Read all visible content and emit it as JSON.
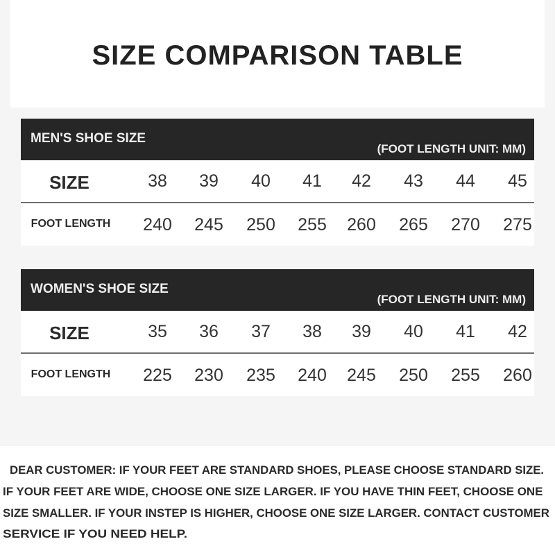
{
  "title": "SIZE COMPARISON TABLE",
  "tables": [
    {
      "heading": "MEN'S SHOE SIZE",
      "unit": "(FOOT LENGTH UNIT: MM)",
      "size_label": "SIZE",
      "length_label": "FOOT LENGTH",
      "sizes": [
        "38",
        "39",
        "40",
        "41",
        "42",
        "43",
        "44",
        "45"
      ],
      "lengths": [
        "240",
        "245",
        "250",
        "255",
        "260",
        "265",
        "270",
        "275"
      ]
    },
    {
      "heading": "WOMEN'S SHOE SIZE",
      "unit": "(FOOT LENGTH UNIT: MM)",
      "size_label": "SIZE",
      "length_label": "FOOT LENGTH",
      "sizes": [
        "35",
        "36",
        "37",
        "38",
        "39",
        "40",
        "41",
        "42"
      ],
      "lengths": [
        "225",
        "230",
        "235",
        "240",
        "245",
        "250",
        "255",
        "260"
      ]
    }
  ],
  "notice": {
    "lines": [
      "DEAR CUSTOMER: IF YOUR FEET ARE STANDARD SHOES, PLEASE CHOOSE STANDARD SIZE.",
      "IF YOUR FEET ARE WIDE, CHOOSE ONE SIZE LARGER. IF YOU HAVE THIN FEET, CHOOSE ONE",
      "SIZE SMALLER. IF YOUR INSTEP IS HIGHER, CHOOSE ONE SIZE LARGER. CONTACT CUSTOMER",
      "SERVICE IF YOU NEED HELP."
    ]
  },
  "colors": {
    "header_bg": "#262626",
    "page_bg": "#f5f5f5",
    "text": "#2a2a2a"
  }
}
